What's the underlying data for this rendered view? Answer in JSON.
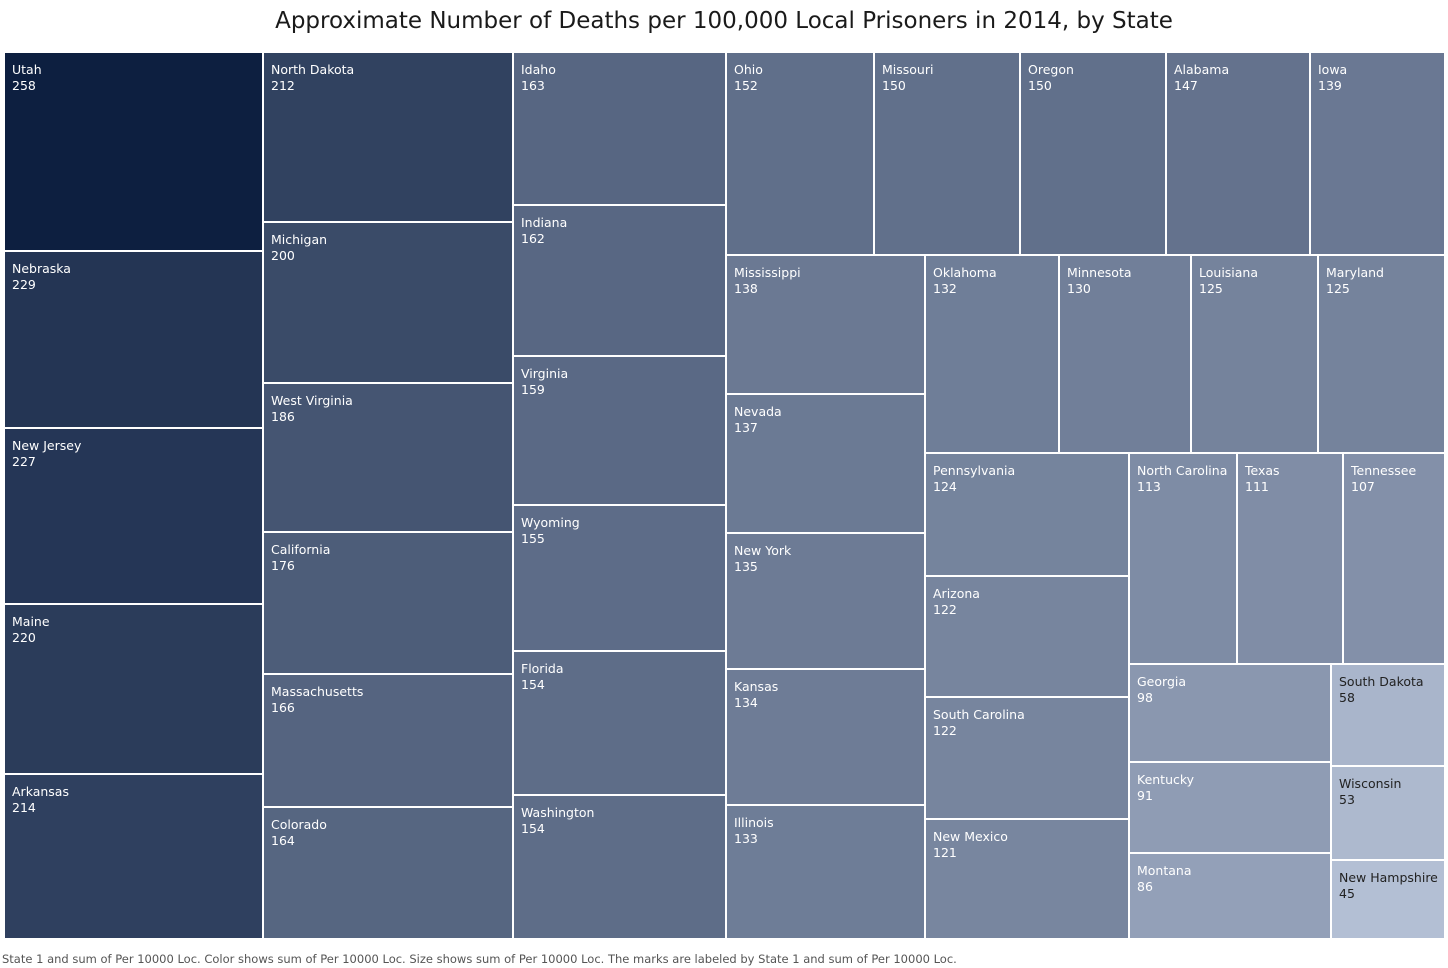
{
  "chart_data": {
    "type": "treemap",
    "title": "Approximate Number of Deaths per 100,000 Local Prisoners in 2014, by State",
    "footer": "State 1 and sum of Per 10000 Loc.  Color shows sum of Per 10000 Loc.  Size shows sum of Per 10000 Loc.  The marks are labeled by State 1 and sum of Per 10000 Loc.",
    "color_scale": {
      "low": "#b3bfd4",
      "high": "#0d1f40"
    },
    "groups": [
      {
        "items": [
          {
            "state": "Utah",
            "value": 258
          },
          {
            "state": "Nebraska",
            "value": 229
          },
          {
            "state": "New Jersey",
            "value": 227
          },
          {
            "state": "Maine",
            "value": 220
          },
          {
            "state": "Arkansas",
            "value": 214
          }
        ]
      },
      {
        "items": [
          {
            "state": "North Dakota",
            "value": 212
          },
          {
            "state": "Michigan",
            "value": 200
          },
          {
            "state": "West Virginia",
            "value": 186
          },
          {
            "state": "California",
            "value": 176
          },
          {
            "state": "Massachusetts",
            "value": 166
          },
          {
            "state": "Colorado",
            "value": 164
          }
        ]
      },
      {
        "items": [
          {
            "state": "Idaho",
            "value": 163
          },
          {
            "state": "Indiana",
            "value": 162
          },
          {
            "state": "Virginia",
            "value": 159
          },
          {
            "state": "Wyoming",
            "value": 155
          },
          {
            "state": "Florida",
            "value": 154
          },
          {
            "state": "Washington",
            "value": 154
          }
        ]
      },
      {
        "items": [
          {
            "state": "Ohio",
            "value": 152
          },
          {
            "state": "Missouri",
            "value": 150
          },
          {
            "state": "Oregon",
            "value": 150
          },
          {
            "state": "Alabama",
            "value": 147
          },
          {
            "state": "Iowa",
            "value": 139
          }
        ]
      },
      {
        "items": [
          {
            "state": "Mississippi",
            "value": 138
          },
          {
            "state": "Nevada",
            "value": 137
          },
          {
            "state": "New York",
            "value": 135
          },
          {
            "state": "Kansas",
            "value": 134
          },
          {
            "state": "Illinois",
            "value": 133
          }
        ]
      },
      {
        "items": [
          {
            "state": "Oklahoma",
            "value": 132
          },
          {
            "state": "Minnesota",
            "value": 130
          },
          {
            "state": "Louisiana",
            "value": 125
          },
          {
            "state": "Maryland",
            "value": 125
          }
        ]
      },
      {
        "items": [
          {
            "state": "Pennsylvania",
            "value": 124
          },
          {
            "state": "Arizona",
            "value": 122
          },
          {
            "state": "South Carolina",
            "value": 122
          },
          {
            "state": "New Mexico",
            "value": 121
          }
        ]
      },
      {
        "items": [
          {
            "state": "North Carolina",
            "value": 113
          },
          {
            "state": "Texas",
            "value": 111
          },
          {
            "state": "Tennessee",
            "value": 107
          }
        ]
      },
      {
        "items": [
          {
            "state": "Georgia",
            "value": 98
          },
          {
            "state": "Kentucky",
            "value": 91
          },
          {
            "state": "Montana",
            "value": 86
          }
        ]
      },
      {
        "items": [
          {
            "state": "South Dakota",
            "value": 58
          },
          {
            "state": "Wisconsin",
            "value": 53
          },
          {
            "state": "New Hampshire",
            "value": 45
          }
        ]
      }
    ]
  }
}
